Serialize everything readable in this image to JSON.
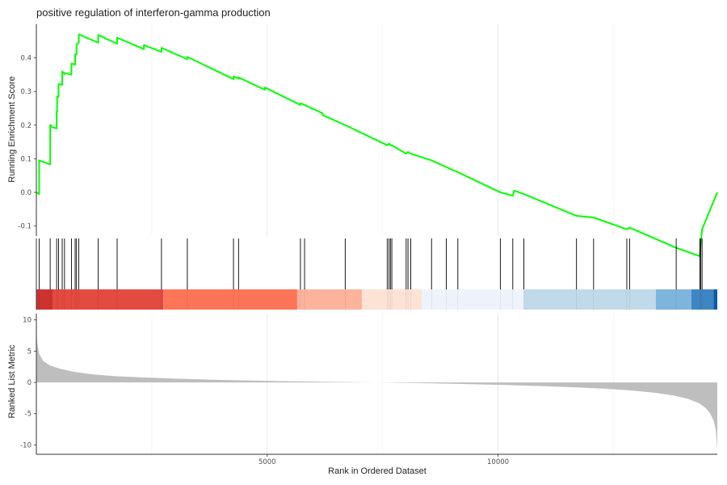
{
  "chart_data": {
    "type": "line",
    "title": "positive regulation of interferon-gamma production",
    "xlabel": "Rank in Ordered Dataset",
    "xlim": [
      0,
      14750
    ],
    "xticks": [
      5000,
      10000
    ],
    "grid": true,
    "panels": [
      {
        "name": "running-es",
        "ylabel": "Running Enrichment Score",
        "ylim": [
          -0.13,
          0.5
        ],
        "yticks": [
          -0.1,
          0.0,
          0.1,
          0.2,
          0.3,
          0.4
        ],
        "line_color": "#00ff00",
        "series": [
          {
            "x": [
              0,
              60,
              60,
              300,
              300,
              320,
              320,
              440,
              440,
              450,
              450,
              480,
              480,
              560,
              560,
              610,
              610,
              760,
              760,
              840,
              840,
              870,
              870,
              920,
              920,
              1340,
              1340,
              1750,
              1750,
              2330,
              2330,
              2710,
              2710,
              3270,
              3270,
              4270,
              4270,
              4380,
              4380,
              4950,
              4950,
              5720,
              5720,
              5810,
              5810,
              6200,
              6200,
              6690,
              6690,
              7600,
              7600,
              7640,
              7640,
              7670,
              7670,
              7700,
              7700,
              8010,
              8010,
              8050,
              8050,
              8110,
              8110,
              8560,
              8560,
              8880,
              8880,
              9130,
              9130,
              10050,
              10050,
              10320,
              10320,
              10350,
              10350,
              10560,
              10560,
              11700,
              11700,
              12070,
              12070,
              12790,
              12790,
              12850,
              12850,
              13860,
              13860,
              14370,
              14370,
              14390,
              14390,
              14420,
              14420,
              14750
            ],
            "y": [
              0.0,
              -0.005,
              0.095,
              0.083,
              0.2,
              0.199,
              0.195,
              0.19,
              0.24,
              0.24,
              0.285,
              0.284,
              0.322,
              0.32,
              0.36,
              0.352,
              0.355,
              0.35,
              0.383,
              0.38,
              0.41,
              0.41,
              0.44,
              0.445,
              0.47,
              0.445,
              0.468,
              0.442,
              0.46,
              0.426,
              0.438,
              0.418,
              0.43,
              0.396,
              0.403,
              0.337,
              0.345,
              0.338,
              0.342,
              0.305,
              0.312,
              0.26,
              0.265,
              0.26,
              0.26,
              0.235,
              0.23,
              0.2,
              0.2,
              0.14,
              0.14,
              0.145,
              0.145,
              0.14,
              0.14,
              0.14,
              0.14,
              0.115,
              0.115,
              0.12,
              0.12,
              0.115,
              0.115,
              0.095,
              0.095,
              0.075,
              0.075,
              0.06,
              0.06,
              0.0,
              0.0,
              -0.01,
              -0.01,
              0.005,
              0.005,
              -0.005,
              -0.005,
              -0.07,
              -0.07,
              -0.075,
              -0.075,
              -0.11,
              -0.11,
              -0.105,
              -0.105,
              -0.165,
              -0.165,
              -0.19,
              -0.19,
              -0.155,
              -0.155,
              -0.11,
              -0.11,
              0.0
            ]
          }
        ]
      },
      {
        "name": "hits",
        "hit_positions": [
          60,
          300,
          440,
          480,
          560,
          610,
          760,
          840,
          870,
          920,
          1340,
          1750,
          2710,
          3270,
          4270,
          4380,
          5720,
          5810,
          6690,
          7600,
          7640,
          7670,
          7700,
          8010,
          8050,
          8110,
          8560,
          8880,
          9130,
          10050,
          10320,
          10560,
          11700,
          12070,
          12790,
          12850,
          13860,
          14370,
          14390,
          14420
        ]
      },
      {
        "name": "ranked-list",
        "ylabel": "Ranked List Metric",
        "ylim": [
          -11.5,
          11
        ],
        "yticks": [
          -10,
          -5,
          0,
          5,
          10
        ],
        "fill_color": "#bebebe",
        "series": [
          {
            "x": [
              0,
              20,
              60,
              150,
              300,
              500,
              800,
              1200,
              1700,
              2300,
              3000,
              3700,
              4500,
              5300,
              6000,
              6700,
              7374,
              8000,
              8700,
              9500,
              10300,
              11000,
              11700,
              12300,
              12900,
              13400,
              13800,
              14100,
              14350,
              14500,
              14600,
              14680,
              14720,
              14750
            ],
            "y": [
              8.4,
              6.2,
              4.6,
              3.4,
              2.7,
              2.2,
              1.7,
              1.3,
              1.0,
              0.8,
              0.6,
              0.45,
              0.32,
              0.2,
              0.12,
              0.05,
              0.0,
              -0.07,
              -0.17,
              -0.3,
              -0.45,
              -0.6,
              -0.8,
              -1.0,
              -1.3,
              -1.65,
              -2.1,
              -2.6,
              -3.3,
              -4.1,
              -5.0,
              -6.3,
              -7.8,
              -10.8
            ]
          }
        ]
      }
    ],
    "color_bands": [
      {
        "from": 0,
        "to": 2750,
        "color": "#e34a40"
      },
      {
        "from": 2750,
        "to": 5650,
        "color": "#fb7556"
      },
      {
        "from": 5650,
        "to": 7050,
        "color": "#fcb39c"
      },
      {
        "from": 7050,
        "to": 8350,
        "color": "#fde2d6"
      },
      {
        "from": 8350,
        "to": 10560,
        "color": "#eef3fb"
      },
      {
        "from": 10560,
        "to": 13420,
        "color": "#c1d9e8"
      },
      {
        "from": 13420,
        "to": 14190,
        "color": "#7db5dc"
      },
      {
        "from": 14190,
        "to": 14670,
        "color": "#3e86c3"
      },
      {
        "from": 14670,
        "to": 14750,
        "color": "#0f5aa4"
      }
    ],
    "band_overlays": [
      {
        "from": 0,
        "to": 350,
        "color": "#b92020"
      }
    ]
  }
}
